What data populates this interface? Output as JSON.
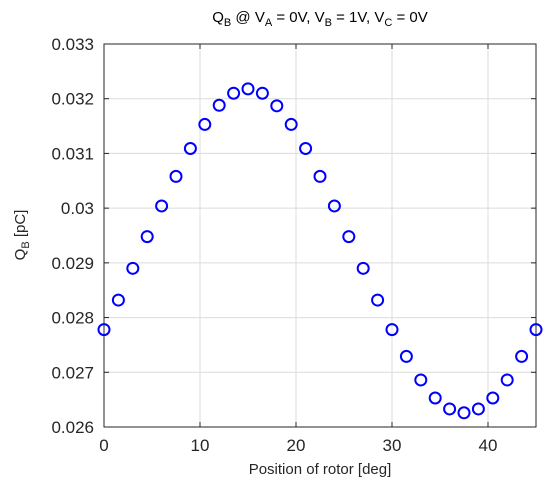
{
  "chart_data": {
    "type": "scatter",
    "title": {
      "parts": [
        {
          "t": "Q"
        },
        {
          "t": "B",
          "sub": true
        },
        {
          "t": " @ V"
        },
        {
          "t": "A",
          "sub": true
        },
        {
          "t": " = 0V, V"
        },
        {
          "t": "B",
          "sub": true
        },
        {
          "t": " = 1V, V"
        },
        {
          "t": "C",
          "sub": true
        },
        {
          "t": " = 0V"
        }
      ]
    },
    "xlabel": "Position of rotor [deg]",
    "ylabel": {
      "parts": [
        {
          "t": "Q"
        },
        {
          "t": "B",
          "sub": true
        },
        {
          "t": " [pC]"
        }
      ]
    },
    "xlim": [
      0,
      45
    ],
    "ylim": [
      0.026,
      0.033
    ],
    "xticks": [
      0,
      10,
      20,
      30,
      40
    ],
    "xtick_labels": [
      "0",
      "10",
      "20",
      "30",
      "40"
    ],
    "yticks": [
      0.026,
      0.027,
      0.028,
      0.029,
      0.03,
      0.031,
      0.032,
      0.033
    ],
    "ytick_labels": [
      "0.026",
      "0.027",
      "0.028",
      "0.029",
      "0.03",
      "0.031",
      "0.032",
      "0.033"
    ],
    "grid": true,
    "marker": "circle-open",
    "color": "#0000ff",
    "series": [
      {
        "x": [
          0,
          1.5,
          3,
          4.5,
          6,
          7.5,
          9,
          10.5,
          12,
          13.5,
          15,
          16.5,
          18,
          19.5,
          21,
          22.5,
          24,
          25.5,
          27,
          28.5,
          30,
          31.5,
          33,
          34.5,
          36,
          37.5,
          39,
          40.5,
          42,
          43.5,
          45
        ],
        "y": [
          0.02778,
          0.02832,
          0.0289,
          0.02948,
          0.03004,
          0.03058,
          0.03109,
          0.03153,
          0.03188,
          0.0321,
          0.03218,
          0.0321,
          0.03187,
          0.03153,
          0.03109,
          0.03058,
          0.03004,
          0.02948,
          0.0289,
          0.02832,
          0.02778,
          0.02729,
          0.02686,
          0.02653,
          0.02633,
          0.02626,
          0.02633,
          0.02653,
          0.02686,
          0.02729,
          0.02778
        ]
      }
    ]
  }
}
